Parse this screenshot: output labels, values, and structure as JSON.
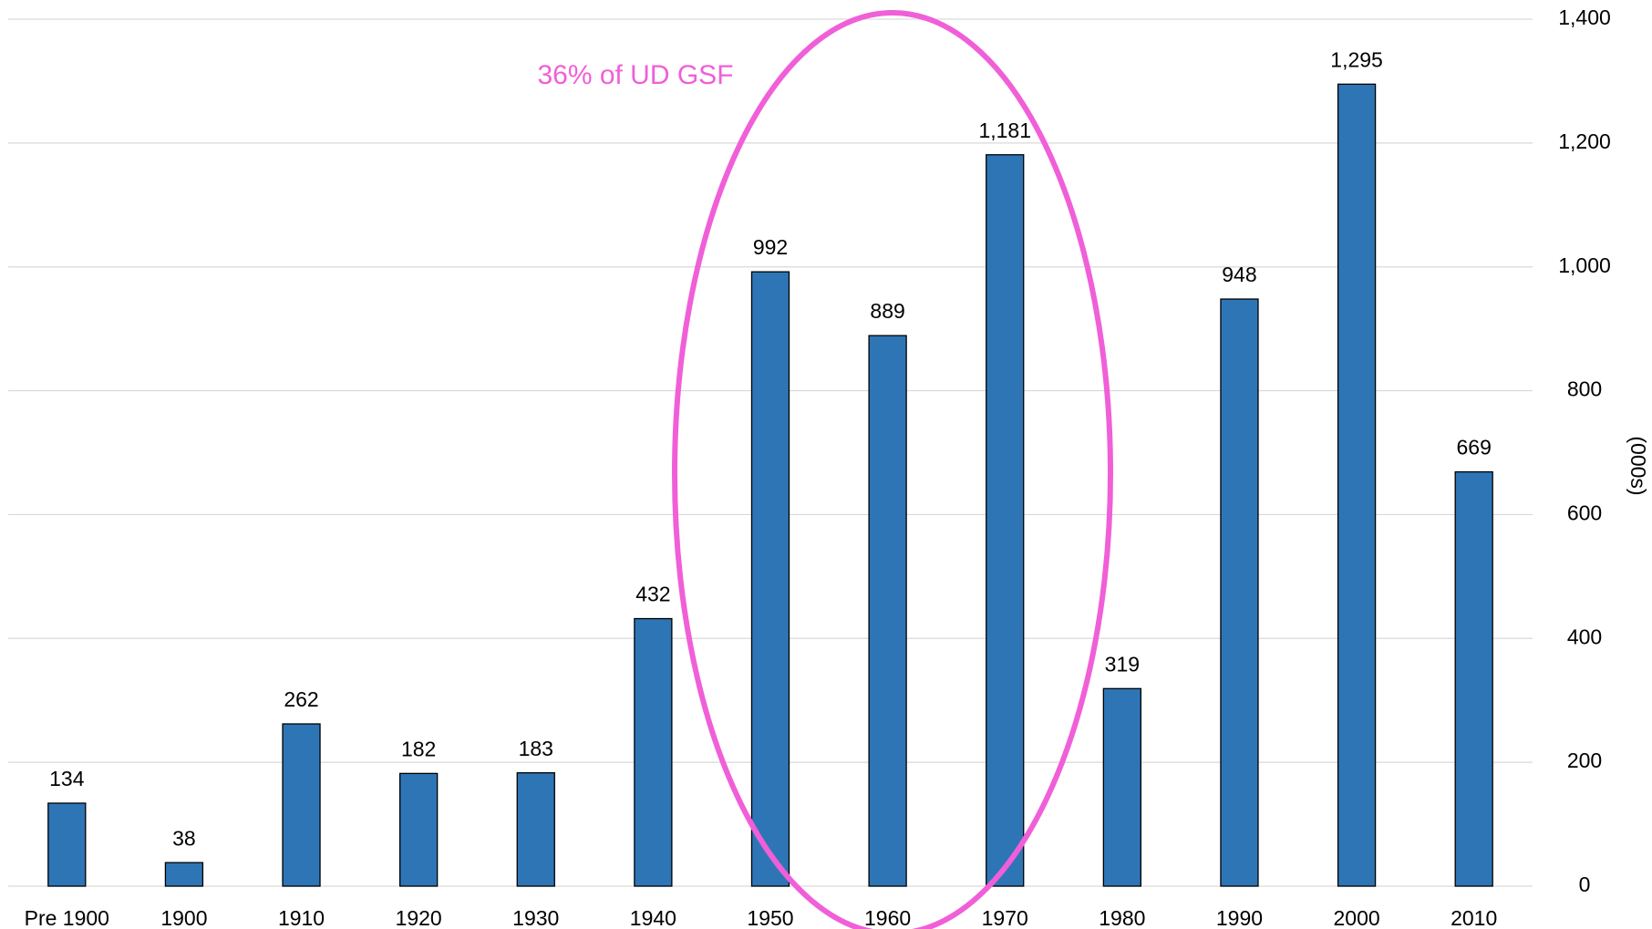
{
  "chart_data": {
    "type": "bar",
    "categories": [
      "Pre 1900",
      "1900",
      "1910",
      "1920",
      "1930",
      "1940",
      "1950",
      "1960",
      "1970",
      "1980",
      "1990",
      "2000",
      "2010"
    ],
    "values": [
      134,
      38,
      262,
      182,
      183,
      432,
      992,
      889,
      1181,
      319,
      948,
      1295,
      669
    ],
    "value_labels": [
      "134",
      "38",
      "262",
      "182",
      "183",
      "432",
      "992",
      "889",
      "1,181",
      "319",
      "948",
      "1,295",
      "669"
    ],
    "color": "#2e75b6",
    "y_axis_label": "(000s)",
    "annotation": "36% of UD GSF",
    "ylim": [
      0,
      1400
    ],
    "yticks": [
      0,
      200,
      400,
      600,
      800,
      {
        "value": 1000,
        "label": "1,000"
      },
      {
        "value": 1200,
        "label": "1,200"
      },
      {
        "value": 1400,
        "label": "1,400"
      }
    ],
    "y_axis_side": "right",
    "grid": true
  }
}
